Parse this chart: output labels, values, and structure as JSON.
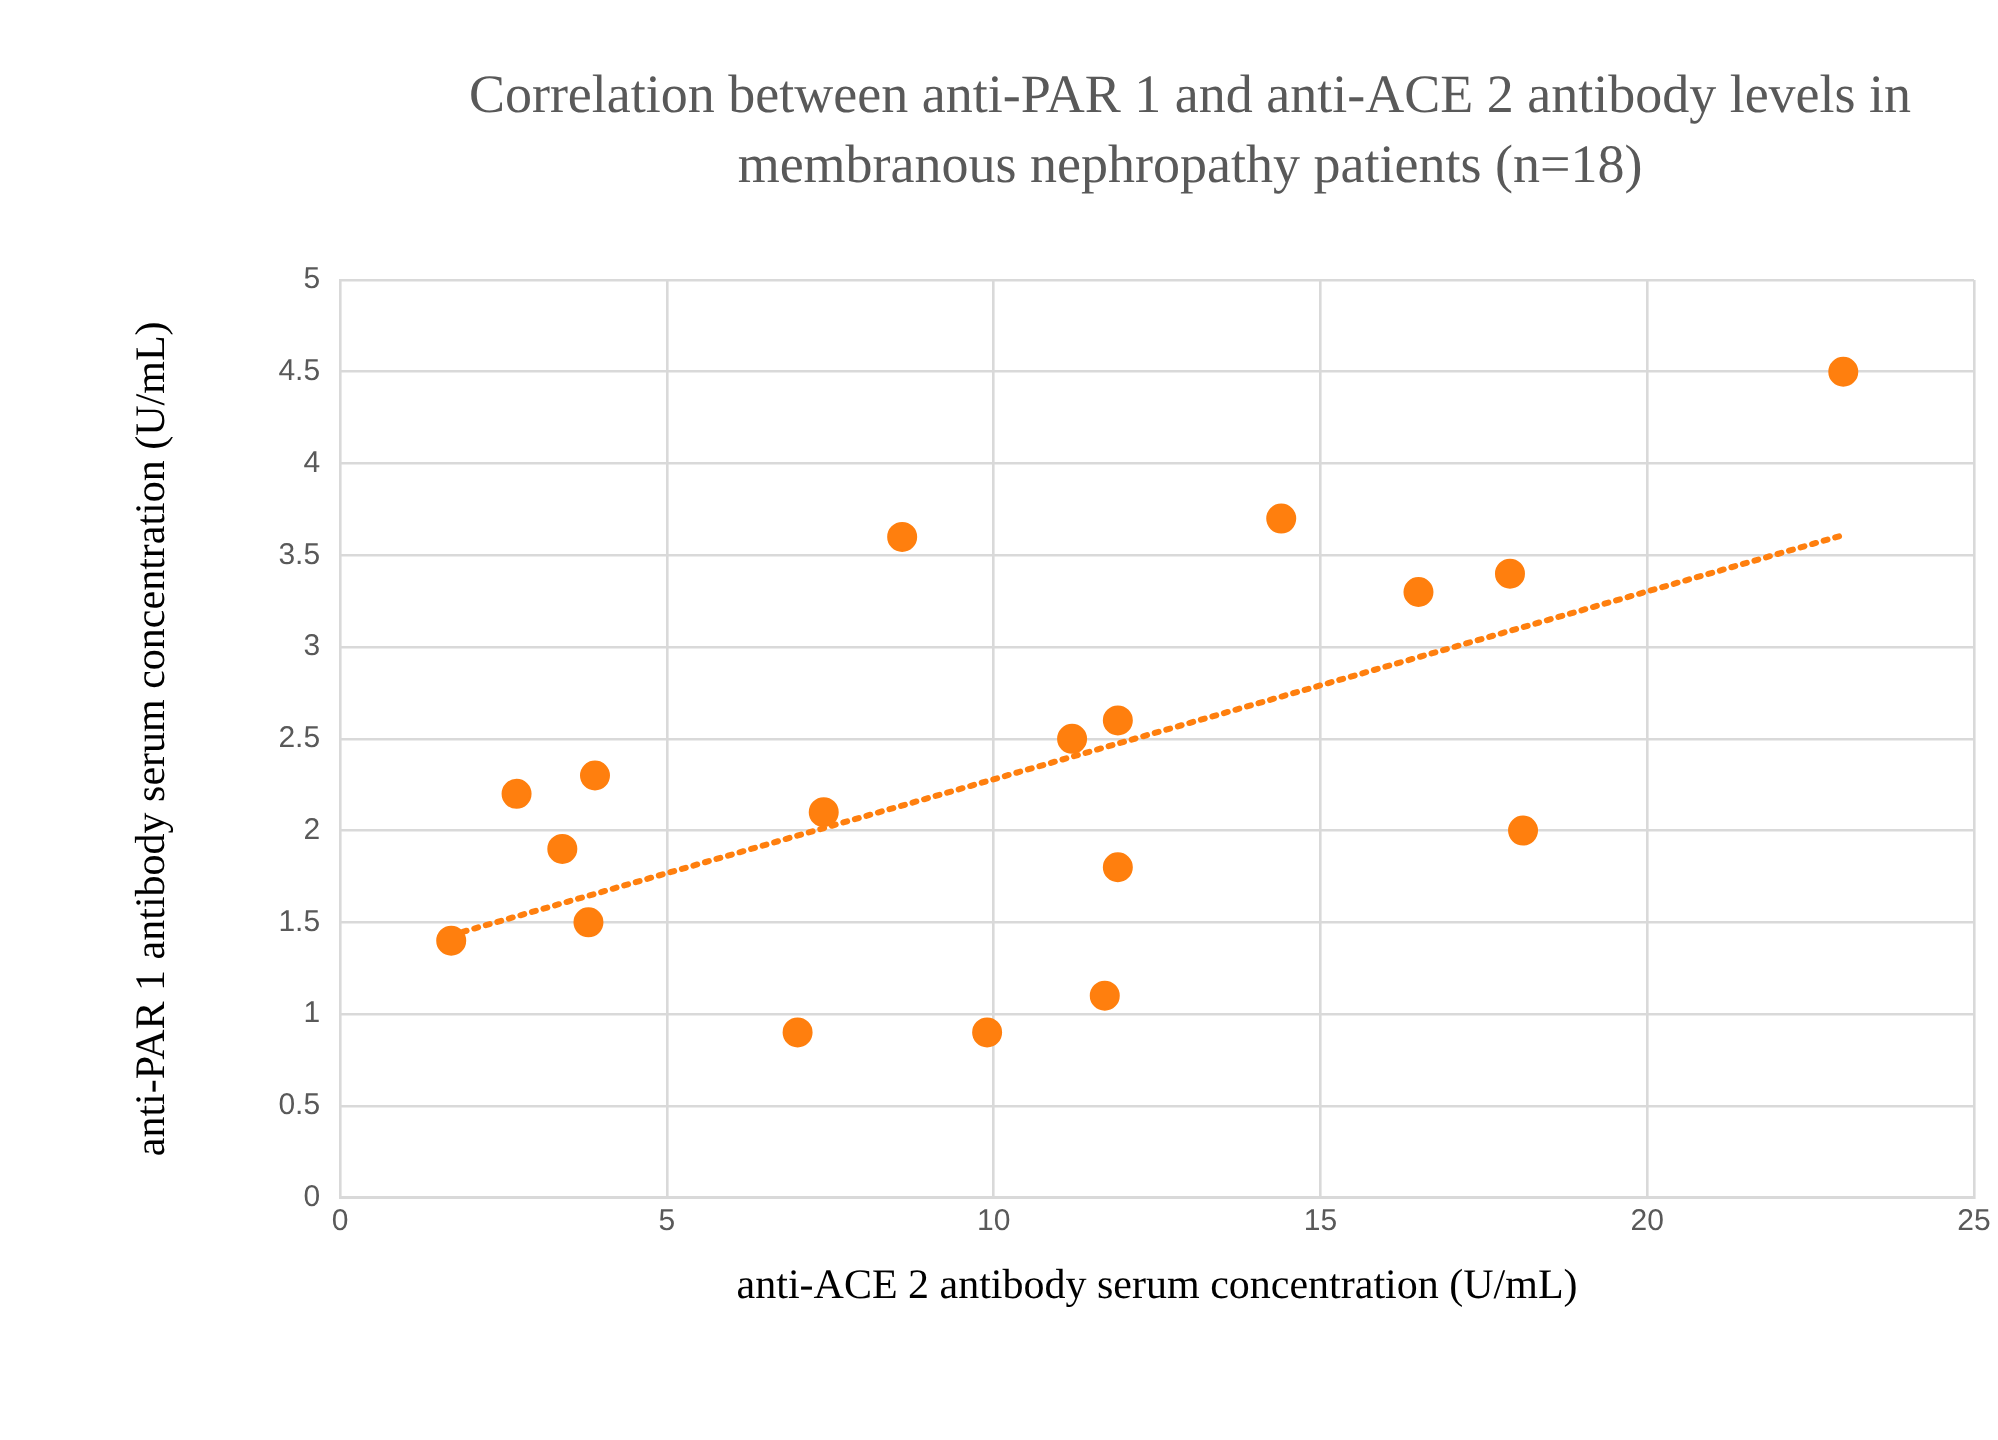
{
  "chart_data": {
    "type": "scatter",
    "title": "Correlation between anti-PAR 1 and anti-ACE 2 antibody levels in membranous nephropathy patients (n=18)",
    "xlabel": "anti-ACE 2 antibody serum concentration (U/mL)",
    "ylabel": "anti-PAR 1 antibody serum concentration (U/mL)",
    "xlim": [
      0,
      25
    ],
    "xticks": [
      0,
      5,
      10,
      15,
      20,
      25
    ],
    "ylim": [
      0,
      5
    ],
    "yticks": [
      0,
      0.5,
      1,
      1.5,
      2,
      2.5,
      3,
      3.5,
      4,
      4.5,
      5
    ],
    "grid": true,
    "legend": false,
    "marker": "circle",
    "series": [
      {
        "color": "#ff7f0e",
        "x": [
          1.7,
          2.7,
          3.4,
          3.8,
          3.9,
          7.0,
          7.4,
          8.6,
          9.9,
          11.2,
          11.7,
          11.9,
          11.9,
          14.4,
          16.5,
          17.9,
          18.1,
          23.0
        ],
        "values": [
          1.4,
          2.2,
          1.9,
          1.5,
          2.3,
          0.9,
          2.1,
          3.6,
          0.9,
          2.5,
          1.1,
          2.6,
          1.8,
          3.7,
          3.3,
          3.4,
          2.0,
          4.5
        ]
      },
      {
        "type": "line",
        "color": "#ff7f0e",
        "line_style": "dotted",
        "marker": "none",
        "x": [
          1.7,
          23.0
        ],
        "values": [
          1.43,
          3.61
        ]
      }
    ]
  }
}
